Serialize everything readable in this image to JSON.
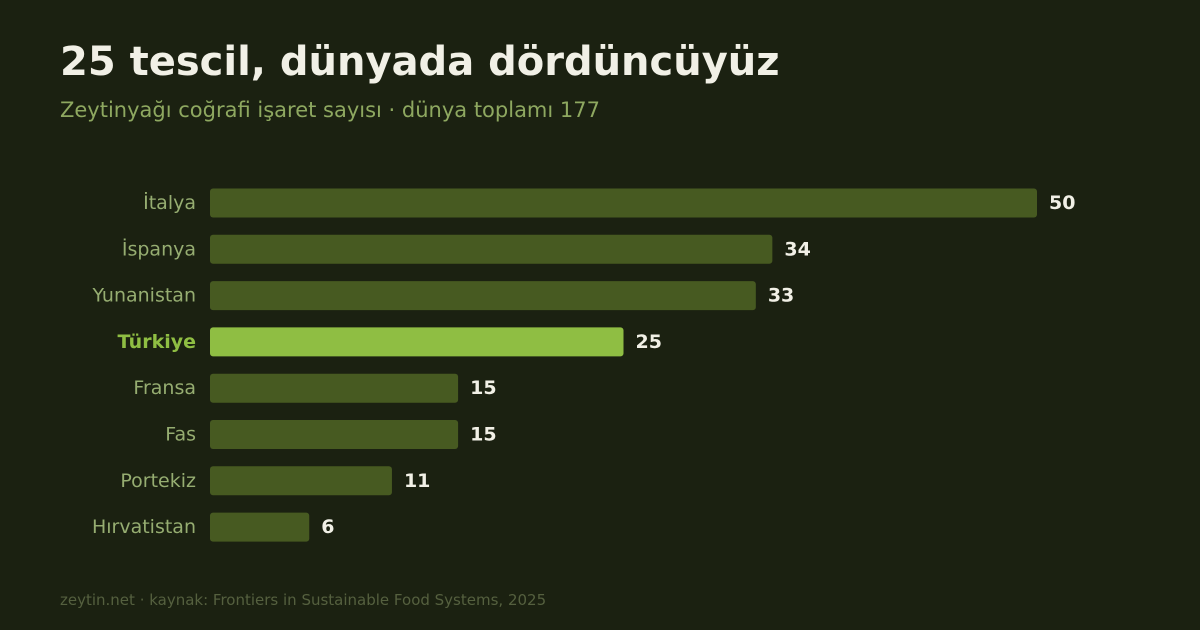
{
  "header": {
    "title": "25 tescil, dünyada dördüncüyüz",
    "subtitle": "Zeytinyağı coğrafi işaret sayısı · dünya toplamı 177"
  },
  "footer": {
    "source": "zeytin.net · kaynak: Frontiers in Sustainable Food Systems, 2025"
  },
  "colors": {
    "background": "#1b2111",
    "bar": "#475a21",
    "highlight_bar": "#8fbe43",
    "label": "#96ad71",
    "highlight_label": "#8fbe43",
    "value": "#f1f0e6"
  },
  "chart_data": {
    "type": "bar",
    "orientation": "horizontal",
    "title": "25 tescil, dünyada dördüncüyüz",
    "subtitle": "Zeytinyağı coğrafi işaret sayısı · dünya toplamı 177",
    "categories": [
      "İtalya",
      "İspanya",
      "Yunanistan",
      "Türkiye",
      "Fransa",
      "Fas",
      "Portekiz",
      "Hırvatistan"
    ],
    "values": [
      50,
      34,
      33,
      25,
      15,
      15,
      11,
      6
    ],
    "highlight": "Türkiye",
    "xlim": [
      0,
      50
    ],
    "grid": false,
    "legend": "none",
    "data_labels": true
  }
}
